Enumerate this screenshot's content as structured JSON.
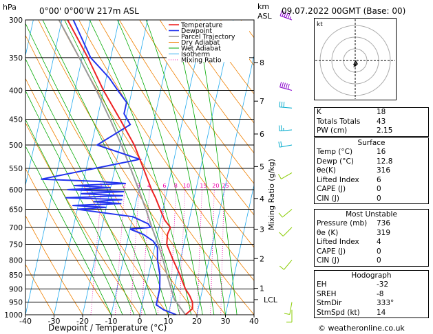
{
  "header": {
    "location": "0°00' 0°00'W 217m ASL",
    "datetime": "09.07.2022 00GMT (Base: 00)"
  },
  "labels": {
    "hpa": "hPa",
    "km": "km",
    "asl": "ASL",
    "mixing_ratio_axis": "Mixing Ratio (g/kg)",
    "lcl": "LCL",
    "hodo_kt": "kt"
  },
  "colors": {
    "temperature": "#ee2222",
    "dewpoint": "#2233ee",
    "parcel": "#999999",
    "dry_adiabat": "#f08000",
    "wet_adiabat": "#00aa00",
    "isotherm": "#22aaee",
    "mixing_ratio": "#ee00aa"
  },
  "chart_data": {
    "type": "line",
    "xlabel": "Dewpoint / Temperature (°C)",
    "ylabel": "hPa",
    "xlim": [
      -40,
      40
    ],
    "ylim": [
      1000,
      300
    ],
    "y_scale": "log",
    "skew": "temperature",
    "pressure_levels": [
      300,
      350,
      400,
      450,
      500,
      550,
      600,
      650,
      700,
      750,
      800,
      850,
      900,
      950,
      1000
    ],
    "temp_ticks": [
      -40,
      -30,
      -20,
      -10,
      0,
      10,
      20,
      30,
      40
    ],
    "km_ticks": [
      {
        "label": "8",
        "p": 357
      },
      {
        "label": "7",
        "p": 418
      },
      {
        "label": "6",
        "p": 478
      },
      {
        "label": "5",
        "p": 546
      },
      {
        "label": "4",
        "p": 622
      },
      {
        "label": "3",
        "p": 705
      },
      {
        "label": "2",
        "p": 795
      },
      {
        "label": "1",
        "p": 898
      }
    ],
    "lcl_p": 940,
    "mixing_ratio_values": [
      "1",
      "2",
      "3",
      "4",
      "6",
      "8",
      "10",
      "15",
      "20",
      "25"
    ],
    "legend": {
      "placement": "top-center",
      "entries": [
        "Temperature",
        "Dewpoint",
        "Parcel Trajectory",
        "Dry Adiabat",
        "Wet Adiabat",
        "Isotherm",
        "Mixing Ratio"
      ]
    },
    "series": [
      {
        "name": "Temperature",
        "p": [
          1000,
          975,
          950,
          925,
          900,
          850,
          800,
          750,
          720,
          700,
          680,
          650,
          620,
          600,
          550,
          500,
          450,
          400,
          350,
          300
        ],
        "t": [
          16,
          18,
          17.5,
          16,
          14,
          11,
          7.5,
          4,
          3.5,
          4,
          1.5,
          -1,
          -3.5,
          -5.5,
          -10,
          -15,
          -22,
          -30,
          -38,
          -48
        ]
      },
      {
        "name": "Dewpoint",
        "p": [
          1000,
          980,
          960,
          940,
          920,
          900,
          850,
          800,
          760,
          740,
          720,
          705,
          700,
          690,
          670,
          650,
          645,
          640,
          635,
          630,
          625,
          620,
          615,
          610,
          605,
          600,
          595,
          590,
          585,
          580,
          575,
          530,
          500,
          460,
          440,
          420,
          400,
          380,
          350,
          300
        ],
        "t": [
          12.8,
          8,
          5,
          5,
          5,
          5,
          4,
          2,
          1,
          -1,
          -5,
          -10,
          -3,
          -4,
          -10,
          -30,
          -20,
          -32,
          -15,
          -25,
          -15,
          -35,
          -15,
          -30,
          -15,
          -35,
          -20,
          -33,
          -15,
          -25,
          -45,
          -12,
          -28,
          -18,
          -21,
          -21,
          -25,
          -29,
          -37,
          -46
        ]
      },
      {
        "name": "Parcel Trajectory",
        "p": [
          1000,
          940,
          900,
          850,
          800,
          750,
          700,
          650,
          600,
          550,
          500,
          450,
          400,
          350,
          300
        ],
        "t": [
          16,
          11,
          9,
          6.5,
          4,
          1,
          -2.5,
          -6,
          -10,
          -14.5,
          -19.5,
          -25.5,
          -32.5,
          -41,
          -51
        ]
      }
    ],
    "wind_barbs": [
      {
        "p": 300,
        "dir": 290,
        "spd": 55
      },
      {
        "p": 400,
        "dir": 285,
        "spd": 50
      },
      {
        "p": 430,
        "dir": 275,
        "spd": 30
      },
      {
        "p": 470,
        "dir": 265,
        "spd": 25
      },
      {
        "p": 500,
        "dir": 260,
        "spd": 20
      },
      {
        "p": 560,
        "dir": 240,
        "spd": 12
      },
      {
        "p": 650,
        "dir": 230,
        "spd": 10
      },
      {
        "p": 700,
        "dir": 225,
        "spd": 10
      },
      {
        "p": 800,
        "dir": 220,
        "spd": 12
      },
      {
        "p": 950,
        "dir": 190,
        "spd": 10
      },
      {
        "p": 980,
        "dir": 180,
        "spd": 12
      }
    ]
  },
  "indices": {
    "top": [
      {
        "label": "K",
        "value": "18"
      },
      {
        "label": "Totals Totals",
        "value": "43"
      },
      {
        "label": "PW (cm)",
        "value": "2.15"
      }
    ],
    "surface": {
      "title": "Surface",
      "rows": [
        {
          "label": "Temp (°C)",
          "value": "16"
        },
        {
          "label": "Dewp (°C)",
          "value": "12.8"
        },
        {
          "label": "θe(K)",
          "value": "316"
        },
        {
          "label": "Lifted Index",
          "value": "6"
        },
        {
          "label": "CAPE (J)",
          "value": "0"
        },
        {
          "label": "CIN (J)",
          "value": "0"
        }
      ]
    },
    "most_unstable": {
      "title": "Most Unstable",
      "rows": [
        {
          "label": "Pressure (mb)",
          "value": "736"
        },
        {
          "label": "θe (K)",
          "value": "319"
        },
        {
          "label": "Lifted Index",
          "value": "4"
        },
        {
          "label": "CAPE (J)",
          "value": "0"
        },
        {
          "label": "CIN (J)",
          "value": "0"
        }
      ]
    },
    "hodograph": {
      "title": "Hodograph",
      "rows": [
        {
          "label": "EH",
          "value": "-32"
        },
        {
          "label": "SREH",
          "value": "-8"
        },
        {
          "label": "StmDir",
          "value": "333°"
        },
        {
          "label": "StmSpd (kt)",
          "value": "14"
        }
      ]
    }
  },
  "footer": "© weatheronline.co.uk"
}
